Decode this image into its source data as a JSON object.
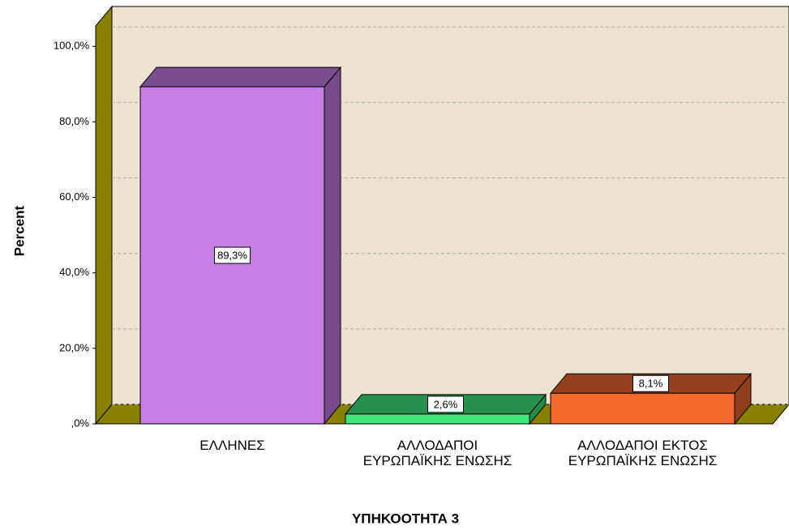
{
  "chart_data": {
    "type": "bar3d",
    "x_label": "ΥΠΗΚΟΟΤΗΤΑ 3",
    "y_label": "Percent",
    "categories": [
      "ΕΛΛΗΝΕΣ",
      "ΑΛΛΟΔΑΠΟΙ ΕΥΡΩΠΑΪΚΗΣ ΕΝΩΣΗΣ",
      "ΑΛΛΟΔΑΠΟΙ ΕΚΤΟΣ ΕΥΡΩΠΑΪΚΗΣ ΕΝΩΣΗΣ"
    ],
    "values": [
      89.3,
      2.6,
      8.1
    ],
    "value_labels": [
      "89,3%",
      "2,6%",
      "8,1%"
    ],
    "colors": [
      "#c77de6",
      "#3de87a",
      "#f2692e"
    ],
    "ylim": [
      0,
      111
    ],
    "yticks": [
      {
        "value": 0,
        "label": ",0%"
      },
      {
        "value": 20,
        "label": "20,0%"
      },
      {
        "value": 40,
        "label": "40,0%"
      },
      {
        "value": 60,
        "label": "60,0%"
      },
      {
        "value": 80,
        "label": "80,0%"
      },
      {
        "value": 100,
        "label": "100,0%"
      }
    ],
    "grid": true
  }
}
